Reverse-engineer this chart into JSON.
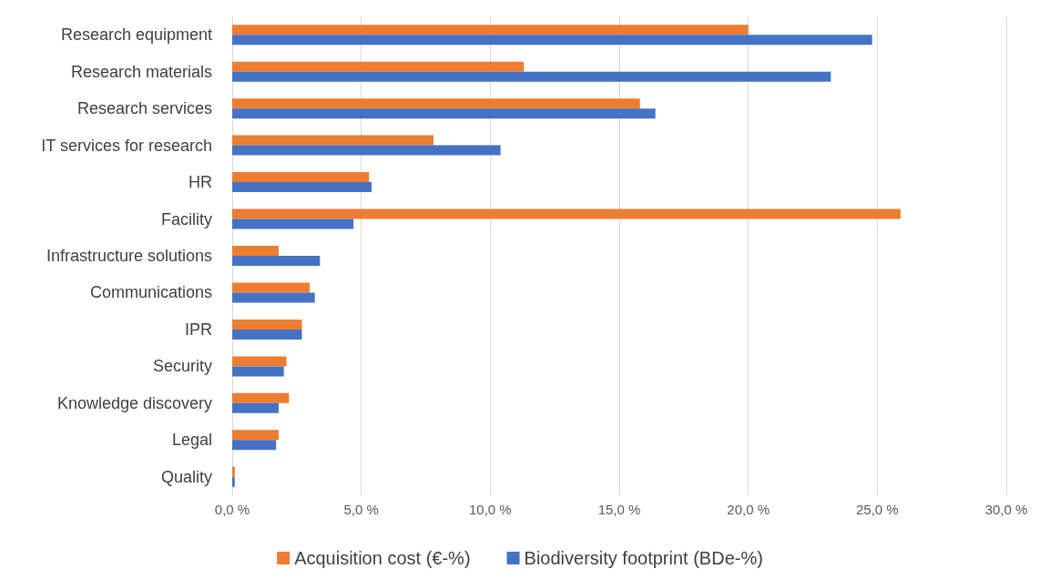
{
  "chart_data": {
    "type": "bar",
    "orientation": "horizontal",
    "categories": [
      "Research equipment",
      "Research materials",
      "Research services",
      "IT services for research",
      "HR",
      "Facility",
      "Infrastructure solutions",
      "Communications",
      "IPR",
      "Security",
      "Knowledge discovery",
      "Legal",
      "Quality"
    ],
    "series": [
      {
        "name": "Acquisition cost (€-%)",
        "color": "#ed7d31",
        "values": [
          20.0,
          11.3,
          15.8,
          7.8,
          5.3,
          25.9,
          1.8,
          3.0,
          2.7,
          2.1,
          2.2,
          1.8,
          0.1
        ]
      },
      {
        "name": "Biodiversity footprint (BDe-%)",
        "color": "#4472c4",
        "values": [
          24.8,
          23.2,
          16.4,
          10.4,
          5.4,
          4.7,
          3.4,
          3.2,
          2.7,
          2.0,
          1.8,
          1.7,
          0.1
        ]
      }
    ],
    "xlim": [
      0,
      30
    ],
    "xticks": [
      {
        "value": 0,
        "label": "0,0 %"
      },
      {
        "value": 5,
        "label": "5,0 %"
      },
      {
        "value": 10,
        "label": "10,0 %"
      },
      {
        "value": 15,
        "label": "15,0 %"
      },
      {
        "value": 20,
        "label": "20,0 %"
      },
      {
        "value": 25,
        "label": "25,0 %"
      },
      {
        "value": 30,
        "label": "30,0 %"
      }
    ],
    "grid": "x",
    "legend": "bottom"
  }
}
